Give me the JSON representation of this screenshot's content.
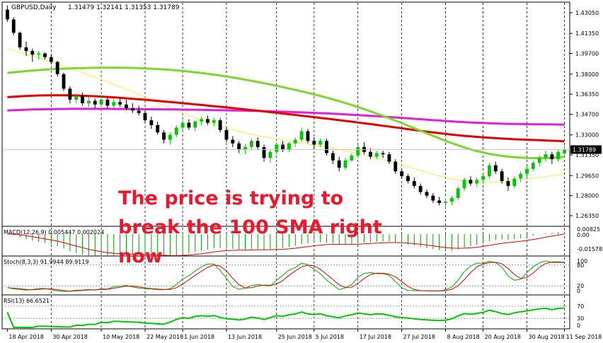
{
  "header": {
    "symbol": "GBPUSD,Daily",
    "ohlc": "1.31479 1.32141 1.31353 1.31789"
  },
  "annotation": {
    "line1": "The price is trying to",
    "line2": "break the 100 SMA right",
    "line3": "now"
  },
  "price_axis": {
    "ticks": [
      "1.43050",
      "1.41350",
      "1.39700",
      "1.38000",
      "1.36350",
      "1.34700",
      "1.33000",
      "1.31350",
      "1.29650",
      "1.28000",
      "1.26350"
    ],
    "current": "1.31789"
  },
  "macd_panel": {
    "label": "MACD(12,26,9) 0.005447 0.002024",
    "ticks": [
      "0.00825",
      "0.00",
      "-0.015788"
    ]
  },
  "stoch_panel": {
    "label": "Stoch(8,3,3) 91.9944 89.9119",
    "ticks": [
      "100",
      "80",
      "20",
      "0"
    ]
  },
  "rsi_panel": {
    "label": "RSI(13) 66.6521",
    "ticks": [
      "70",
      "30",
      "0"
    ]
  },
  "x_axis": {
    "ticks": [
      "18 Apr 2018",
      "30 Apr 2018",
      "10 May 2018",
      "22 May 2018",
      "1 Jun 2018",
      "13 Jun 2018",
      "25 Jun 2018",
      "5 Jul 2018",
      "17 Jul 2018",
      "27 Jul 2018",
      "8 Aug 2018",
      "20 Aug 2018",
      "30 Aug 2018",
      "11 Sep 2018"
    ]
  },
  "colors": {
    "bull": "#00c800",
    "bear": "#000000",
    "sma_fast": "#ffe74a",
    "sma_50": "#7cd62b",
    "sma_100": "#e00000",
    "sma_200": "#e020d8",
    "macd_hist": "#00a000",
    "macd_signal": "#e00000",
    "stoch_main": "#00b000",
    "stoch_signal": "#e00000",
    "rsi": "#00c800",
    "annotation": "#e8192c"
  },
  "chart_data": {
    "type": "candlestick",
    "title": "GBPUSD,Daily",
    "ylim": [
      1.2635,
      1.4305
    ],
    "candles": [
      [
        1.433,
        1.4365,
        1.423,
        1.425
      ],
      [
        1.425,
        1.427,
        1.412,
        1.414
      ],
      [
        1.414,
        1.415,
        1.4,
        1.402
      ],
      [
        1.402,
        1.407,
        1.395,
        1.399
      ],
      [
        1.399,
        1.401,
        1.39,
        1.396
      ],
      [
        1.396,
        1.399,
        1.392,
        1.397
      ],
      [
        1.397,
        1.398,
        1.392,
        1.394
      ],
      [
        1.394,
        1.396,
        1.388,
        1.39
      ],
      [
        1.39,
        1.391,
        1.378,
        1.38
      ],
      [
        1.38,
        1.381,
        1.366,
        1.368
      ],
      [
        1.368,
        1.37,
        1.356,
        1.359
      ],
      [
        1.359,
        1.364,
        1.356,
        1.362
      ],
      [
        1.362,
        1.365,
        1.354,
        1.356
      ],
      [
        1.356,
        1.361,
        1.353,
        1.358
      ],
      [
        1.358,
        1.36,
        1.352,
        1.355
      ],
      [
        1.355,
        1.362,
        1.353,
        1.359
      ],
      [
        1.359,
        1.361,
        1.352,
        1.354
      ],
      [
        1.354,
        1.36,
        1.352,
        1.357
      ],
      [
        1.357,
        1.361,
        1.353,
        1.355
      ],
      [
        1.355,
        1.359,
        1.35,
        1.352
      ],
      [
        1.352,
        1.356,
        1.348,
        1.35
      ],
      [
        1.35,
        1.354,
        1.346,
        1.348
      ],
      [
        1.348,
        1.35,
        1.34,
        1.342
      ],
      [
        1.342,
        1.345,
        1.335,
        1.338
      ],
      [
        1.338,
        1.341,
        1.33,
        1.332
      ],
      [
        1.332,
        1.334,
        1.323,
        1.326
      ],
      [
        1.326,
        1.332,
        1.322,
        1.33
      ],
      [
        1.33,
        1.338,
        1.328,
        1.336
      ],
      [
        1.336,
        1.342,
        1.333,
        1.34
      ],
      [
        1.34,
        1.343,
        1.334,
        1.336
      ],
      [
        1.336,
        1.342,
        1.333,
        1.341
      ],
      [
        1.341,
        1.345,
        1.338,
        1.343
      ],
      [
        1.343,
        1.346,
        1.338,
        1.34
      ],
      [
        1.34,
        1.344,
        1.337,
        1.342
      ],
      [
        1.342,
        1.344,
        1.332,
        1.334
      ],
      [
        1.334,
        1.336,
        1.324,
        1.326
      ],
      [
        1.326,
        1.329,
        1.32,
        1.323
      ],
      [
        1.323,
        1.325,
        1.315,
        1.318
      ],
      [
        1.318,
        1.322,
        1.314,
        1.32
      ],
      [
        1.32,
        1.327,
        1.318,
        1.325
      ],
      [
        1.325,
        1.328,
        1.318,
        1.32
      ],
      [
        1.32,
        1.322,
        1.308,
        1.311
      ],
      [
        1.311,
        1.318,
        1.307,
        1.316
      ],
      [
        1.316,
        1.324,
        1.314,
        1.322
      ],
      [
        1.322,
        1.325,
        1.316,
        1.318
      ],
      [
        1.318,
        1.324,
        1.316,
        1.323
      ],
      [
        1.323,
        1.328,
        1.32,
        1.326
      ],
      [
        1.326,
        1.336,
        1.324,
        1.333
      ],
      [
        1.333,
        1.335,
        1.323,
        1.325
      ],
      [
        1.325,
        1.328,
        1.319,
        1.322
      ],
      [
        1.322,
        1.327,
        1.32,
        1.325
      ],
      [
        1.325,
        1.327,
        1.313,
        1.315
      ],
      [
        1.315,
        1.317,
        1.306,
        1.309
      ],
      [
        1.309,
        1.312,
        1.3,
        1.303
      ],
      [
        1.303,
        1.311,
        1.301,
        1.309
      ],
      [
        1.309,
        1.315,
        1.308,
        1.313
      ],
      [
        1.313,
        1.322,
        1.311,
        1.32
      ],
      [
        1.32,
        1.324,
        1.314,
        1.316
      ],
      [
        1.316,
        1.319,
        1.31,
        1.312
      ],
      [
        1.312,
        1.317,
        1.31,
        1.315
      ],
      [
        1.315,
        1.317,
        1.311,
        1.314
      ],
      [
        1.314,
        1.316,
        1.306,
        1.308
      ],
      [
        1.308,
        1.31,
        1.298,
        1.3
      ],
      [
        1.3,
        1.302,
        1.294,
        1.296
      ],
      [
        1.296,
        1.298,
        1.29,
        1.292
      ],
      [
        1.292,
        1.295,
        1.286,
        1.288
      ],
      [
        1.288,
        1.29,
        1.281,
        1.283
      ],
      [
        1.283,
        1.285,
        1.278,
        1.28
      ],
      [
        1.28,
        1.282,
        1.274,
        1.276
      ],
      [
        1.276,
        1.279,
        1.272,
        1.274
      ],
      [
        1.274,
        1.278,
        1.27,
        1.275
      ],
      [
        1.275,
        1.28,
        1.272,
        1.278
      ],
      [
        1.278,
        1.288,
        1.276,
        1.286
      ],
      [
        1.286,
        1.295,
        1.284,
        1.293
      ],
      [
        1.293,
        1.296,
        1.288,
        1.29
      ],
      [
        1.29,
        1.295,
        1.287,
        1.293
      ],
      [
        1.293,
        1.299,
        1.29,
        1.296
      ],
      [
        1.296,
        1.307,
        1.294,
        1.305
      ],
      [
        1.305,
        1.308,
        1.298,
        1.3
      ],
      [
        1.3,
        1.302,
        1.29,
        1.292
      ],
      [
        1.292,
        1.295,
        1.284,
        1.288
      ],
      [
        1.288,
        1.296,
        1.286,
        1.294
      ],
      [
        1.294,
        1.3,
        1.291,
        1.298
      ],
      [
        1.298,
        1.304,
        1.295,
        1.302
      ],
      [
        1.302,
        1.309,
        1.3,
        1.307
      ],
      [
        1.307,
        1.313,
        1.304,
        1.311
      ],
      [
        1.311,
        1.317,
        1.308,
        1.314
      ],
      [
        1.314,
        1.316,
        1.306,
        1.31
      ],
      [
        1.31,
        1.318,
        1.308,
        1.316
      ],
      [
        1.3148,
        1.3214,
        1.3135,
        1.3179
      ]
    ],
    "sma_fast": [
      1.401,
      1.3995,
      1.398,
      1.3964,
      1.3948,
      1.3933,
      1.3917,
      1.3901,
      1.3885,
      1.3867,
      1.385,
      1.3832,
      1.3812,
      1.3793,
      1.3775,
      1.3756,
      1.3737,
      1.3717,
      1.3696,
      1.3675,
      1.3654,
      1.3632,
      1.361,
      1.3588,
      1.3566,
      1.3544,
      1.3522,
      1.3501,
      1.348,
      1.3459,
      1.344,
      1.3421,
      1.3403,
      1.3386,
      1.337,
      1.3355,
      1.3341,
      1.3328,
      1.3316,
      1.3305,
      1.3294,
      1.3284,
      1.3275,
      1.3266,
      1.3257,
      1.3248,
      1.324,
      1.3232,
      1.3224,
      1.3216,
      1.3208,
      1.32,
      1.319,
      1.318,
      1.317,
      1.316,
      1.3148,
      1.3136,
      1.3124,
      1.311,
      1.3097,
      1.3083,
      1.3068,
      1.3053,
      1.3038,
      1.3022,
      1.3007,
      1.2991,
      1.2976,
      1.2962,
      1.2949,
      1.2938,
      1.2928,
      1.292,
      1.2914,
      1.291,
      1.2909,
      1.2909,
      1.2911,
      1.2914,
      1.2918,
      1.2924,
      1.293,
      1.2937,
      1.2944,
      1.2951,
      1.2958,
      1.2964,
      1.2969,
      1.2973
    ],
    "sma_50": [
      1.381,
      1.3815,
      1.382,
      1.3825,
      1.3829,
      1.3833,
      1.3837,
      1.384,
      1.3843,
      1.3845,
      1.3847,
      1.3849,
      1.385,
      1.3851,
      1.3852,
      1.3853,
      1.3853,
      1.3853,
      1.3853,
      1.3852,
      1.3851,
      1.3849,
      1.3847,
      1.3845,
      1.3842,
      1.3839,
      1.3835,
      1.3831,
      1.3826,
      1.3821,
      1.3815,
      1.3809,
      1.3802,
      1.3795,
      1.3788,
      1.378,
      1.3772,
      1.3763,
      1.3754,
      1.3745,
      1.3735,
      1.3725,
      1.3715,
      1.3704,
      1.3693,
      1.3682,
      1.367,
      1.3658,
      1.3646,
      1.3633,
      1.362,
      1.3606,
      1.3592,
      1.3577,
      1.3562,
      1.3546,
      1.3529,
      1.3512,
      1.3494,
      1.3476,
      1.3457,
      1.3437,
      1.3417,
      1.3397,
      1.3376,
      1.3355,
      1.3334,
      1.3313,
      1.3292,
      1.3271,
      1.3251,
      1.3232,
      1.3214,
      1.3197,
      1.3181,
      1.3167,
      1.3155,
      1.3144,
      1.3135,
      1.3127,
      1.3121,
      1.3116,
      1.3113,
      1.311,
      1.3109,
      1.3109,
      1.311,
      1.3112,
      1.3115,
      1.3118
    ],
    "sma_100": [
      1.361,
      1.3614,
      1.3617,
      1.362,
      1.3622,
      1.3624,
      1.3625,
      1.3626,
      1.3626,
      1.3626,
      1.3625,
      1.3624,
      1.3622,
      1.362,
      1.3618,
      1.3615,
      1.3612,
      1.3609,
      1.3605,
      1.3601,
      1.3597,
      1.3593,
      1.3589,
      1.3584,
      1.358,
      1.3575,
      1.357,
      1.3566,
      1.3561,
      1.3556,
      1.3551,
      1.3546,
      1.3541,
      1.3536,
      1.3531,
      1.3526,
      1.352,
      1.3515,
      1.351,
      1.3504,
      1.3499,
      1.3493,
      1.3487,
      1.3482,
      1.3476,
      1.347,
      1.3464,
      1.3458,
      1.3452,
      1.3446,
      1.344,
      1.3434,
      1.3428,
      1.3421,
      1.3415,
      1.3409,
      1.3402,
      1.3395,
      1.3389,
      1.3382,
      1.3375,
      1.3368,
      1.3361,
      1.3354,
      1.3347,
      1.334,
      1.3333,
      1.3326,
      1.332,
      1.3314,
      1.3308,
      1.3302,
      1.3297,
      1.3292,
      1.3288,
      1.3284,
      1.328,
      1.3276,
      1.3273,
      1.327,
      1.3267,
      1.3264,
      1.3262,
      1.326,
      1.3258,
      1.3256,
      1.3254,
      1.3252,
      1.325,
      1.3248
    ],
    "sma_200": [
      1.35,
      1.3503,
      1.3505,
      1.3507,
      1.3509,
      1.351,
      1.3511,
      1.3512,
      1.3513,
      1.3513,
      1.3514,
      1.3514,
      1.3514,
      1.3514,
      1.3514,
      1.3514,
      1.3514,
      1.3513,
      1.3513,
      1.3513,
      1.3512,
      1.3512,
      1.3511,
      1.3511,
      1.351,
      1.351,
      1.3509,
      1.3509,
      1.3508,
      1.3507,
      1.3507,
      1.3506,
      1.3505,
      1.3504,
      1.3503,
      1.3502,
      1.3501,
      1.35,
      1.3499,
      1.3498,
      1.3497,
      1.3495,
      1.3494,
      1.3492,
      1.3491,
      1.3489,
      1.3487,
      1.3485,
      1.3483,
      1.3481,
      1.3479,
      1.3477,
      1.3474,
      1.3472,
      1.3469,
      1.3466,
      1.3463,
      1.346,
      1.3457,
      1.3454,
      1.345,
      1.3447,
      1.3443,
      1.344,
      1.3436,
      1.3432,
      1.3429,
      1.3425,
      1.3421,
      1.3418,
      1.3414,
      1.3411,
      1.3408,
      1.3405,
      1.3402,
      1.34,
      1.3398,
      1.3396,
      1.3394,
      1.3392,
      1.3391,
      1.339,
      1.3389,
      1.3388,
      1.3387,
      1.3387,
      1.3386,
      1.3386,
      1.3385,
      1.3385
    ]
  }
}
